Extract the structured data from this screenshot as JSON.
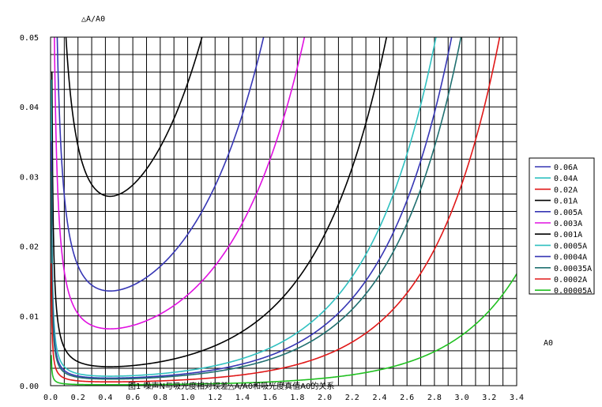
{
  "chart_data": {
    "type": "line",
    "caption": "图1 噪声N与吸光度相对误差△A/A0和吸光度真值A0的关系",
    "ylabel": "△A/A0",
    "xlabel": "A0",
    "xlim": [
      0,
      3.4
    ],
    "ylim": [
      0,
      0.05
    ],
    "xticks": [
      "0.0",
      "0.2",
      "0.4",
      "0.6",
      "0.8",
      "1.0",
      "1.2",
      "1.4",
      "1.6",
      "1.8",
      "2.0",
      "2.2",
      "2.4",
      "2.6",
      "2.8",
      "3.0",
      "3.2",
      "3.4"
    ],
    "yticks": [
      "0.00",
      "0.01",
      "0.02",
      "0.03",
      "0.04",
      "0.05"
    ],
    "grid": true,
    "legend_position": "right",
    "series": [
      {
        "name": "0.06A",
        "noise": 0.06,
        "color": "#3636b4"
      },
      {
        "name": "0.04A",
        "noise": 0.04,
        "color": "#30c0c0"
      },
      {
        "name": "0.02A",
        "noise": 0.02,
        "color": "#e01818"
      },
      {
        "name": "0.01A",
        "noise": 0.01,
        "color": "#000000"
      },
      {
        "name": "0.005A",
        "noise": 0.005,
        "color": "#3636b4"
      },
      {
        "name": "0.003A",
        "noise": 0.003,
        "color": "#e010e0"
      },
      {
        "name": "0.001A",
        "noise": 0.001,
        "color": "#000000"
      },
      {
        "name": "0.0005A",
        "noise": 0.0005,
        "color": "#30c0c0"
      },
      {
        "name": "0.0004A",
        "noise": 0.0004,
        "color": "#3636b4"
      },
      {
        "name": "0.00035A",
        "noise": 0.00035,
        "color": "#207070"
      },
      {
        "name": "0.0002A",
        "noise": 0.0002,
        "color": "#e01818"
      },
      {
        "name": "0.00005A",
        "noise": 5e-05,
        "color": "#20c020"
      }
    ]
  }
}
